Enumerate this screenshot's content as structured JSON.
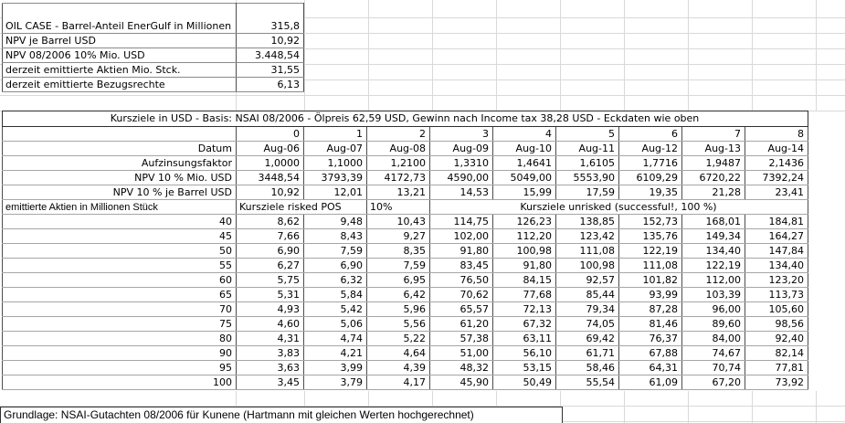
{
  "summary_table": {
    "rows": [
      {
        "label": "OIL CASE - Barrel-Anteil EnerGulf in Millionen",
        "value": "315,8"
      },
      {
        "label": "NPV je Barrel USD",
        "value": "10,92"
      },
      {
        "label": "NPV 08/2006 10% Mio. USD",
        "value": "3.448,54"
      },
      {
        "label": "derzeit emittierte Aktien Mio. Stck.",
        "value": "31,55"
      },
      {
        "label": "derzeit emittierte Bezugsrechte",
        "value": "6,13"
      }
    ]
  },
  "main_table": {
    "title": "Kursziele in USD - Basis: NSAI 08/2006 - Ölpreis 62,59 USD, Gewinn nach Income tax 38,28 USD - Eckdaten wie oben",
    "col_indices": [
      "0",
      "1",
      "2",
      "3",
      "4",
      "5",
      "6",
      "7",
      "8"
    ],
    "meta_rows": [
      {
        "label": "Datum",
        "values": [
          "Aug-06",
          "Aug-07",
          "Aug-08",
          "Aug-09",
          "Aug-10",
          "Aug-11",
          "Aug-12",
          "Aug-13",
          "Aug-14"
        ]
      },
      {
        "label": "Aufzinsungsfaktor",
        "values": [
          "1,0000",
          "1,1000",
          "1,2100",
          "1,3310",
          "1,4641",
          "1,6105",
          "1,7716",
          "1,9487",
          "2,1436"
        ]
      },
      {
        "label": "NPV 10 % Mio. USD",
        "values": [
          "3448,54",
          "3793,39",
          "4172,73",
          "4590,00",
          "5049,00",
          "5553,90",
          "6109,29",
          "6720,22",
          "7392,24"
        ]
      },
      {
        "label": "NPV 10 % je Barrel USD",
        "values": [
          "10,92",
          "12,01",
          "13,21",
          "14,53",
          "15,99",
          "17,59",
          "19,35",
          "21,28",
          "23,41"
        ]
      }
    ],
    "section_row": {
      "label": "emittierte Aktien in Millionen Stück",
      "risked_label": "Kursziele risked POS",
      "risked_pct": "10%",
      "unrisked_label": "Kursziele unrisked (successful!, 100 %)"
    },
    "share_rows": [
      {
        "shares": "40",
        "values": [
          "8,62",
          "9,48",
          "10,43",
          "114,75",
          "126,23",
          "138,85",
          "152,73",
          "168,01",
          "184,81"
        ]
      },
      {
        "shares": "45",
        "values": [
          "7,66",
          "8,43",
          "9,27",
          "102,00",
          "112,20",
          "123,42",
          "135,76",
          "149,34",
          "164,27"
        ]
      },
      {
        "shares": "50",
        "values": [
          "6,90",
          "7,59",
          "8,35",
          "91,80",
          "100,98",
          "111,08",
          "122,19",
          "134,40",
          "147,84"
        ]
      },
      {
        "shares": "55",
        "values": [
          "6,27",
          "6,90",
          "7,59",
          "83,45",
          "91,80",
          "100,98",
          "111,08",
          "122,19",
          "134,40"
        ]
      },
      {
        "shares": "60",
        "values": [
          "5,75",
          "6,32",
          "6,95",
          "76,50",
          "84,15",
          "92,57",
          "101,82",
          "112,00",
          "123,20"
        ]
      },
      {
        "shares": "65",
        "values": [
          "5,31",
          "5,84",
          "6,42",
          "70,62",
          "77,68",
          "85,44",
          "93,99",
          "103,39",
          "113,73"
        ]
      },
      {
        "shares": "70",
        "values": [
          "4,93",
          "5,42",
          "5,96",
          "65,57",
          "72,13",
          "79,34",
          "87,28",
          "96,00",
          "105,60"
        ]
      },
      {
        "shares": "75",
        "values": [
          "4,60",
          "5,06",
          "5,56",
          "61,20",
          "67,32",
          "74,05",
          "81,46",
          "89,60",
          "98,56"
        ]
      },
      {
        "shares": "80",
        "values": [
          "4,31",
          "4,74",
          "5,22",
          "57,38",
          "63,11",
          "69,42",
          "76,37",
          "84,00",
          "92,40"
        ]
      },
      {
        "shares": "90",
        "values": [
          "3,83",
          "4,21",
          "4,64",
          "51,00",
          "56,10",
          "61,71",
          "67,88",
          "74,67",
          "82,14"
        ]
      },
      {
        "shares": "95",
        "values": [
          "3,63",
          "3,99",
          "4,39",
          "48,32",
          "53,15",
          "58,46",
          "64,31",
          "70,74",
          "77,81"
        ]
      },
      {
        "shares": "100",
        "values": [
          "3,45",
          "3,79",
          "4,17",
          "45,90",
          "50,49",
          "55,54",
          "61,09",
          "67,20",
          "73,92"
        ]
      }
    ]
  },
  "footer": {
    "text": "Grundlage: NSAI-Gutachten 08/2006 für Kunene (Hartmann mit gleichen Werten hochgerechnet)"
  },
  "colors": {
    "background": "#ffffff",
    "text": "#000000",
    "grid_line": "#d9d9d9",
    "border_dark": "#2f2f2f",
    "border_vertical": "#4d4d4d",
    "border_horizontal": "#a6a6a6"
  }
}
